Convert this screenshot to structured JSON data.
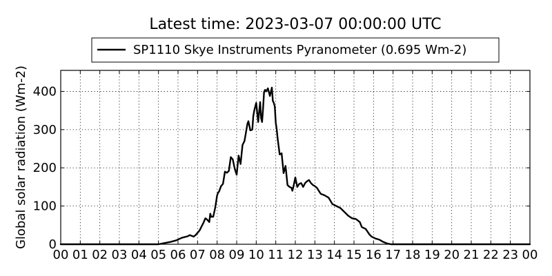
{
  "chart_data": {
    "type": "line",
    "title": "Latest time: 2023-03-07 00:00:00 UTC",
    "xlabel": "",
    "ylabel": "Global solar radiation (Wm-2)",
    "xlim": [
      0,
      24
    ],
    "ylim": [
      0,
      455
    ],
    "x_tick_labels": [
      "00",
      "01",
      "02",
      "03",
      "04",
      "05",
      "06",
      "07",
      "08",
      "09",
      "10",
      "11",
      "12",
      "13",
      "14",
      "15",
      "16",
      "17",
      "18",
      "19",
      "20",
      "21",
      "22",
      "23",
      "00"
    ],
    "y_ticks": [
      0,
      100,
      200,
      300,
      400
    ],
    "y_tick_labels": [
      "0",
      "100",
      "200",
      "300",
      "400"
    ],
    "grid": true,
    "legend_position": "top-center",
    "series": [
      {
        "name": "SP1110 Skye Instruments Pyranometer (0.695 Wm-2)",
        "color": "#000000",
        "x": [
          0,
          5.0,
          5.3,
          5.6,
          5.9,
          6.2,
          6.5,
          6.6,
          6.8,
          6.9,
          7.1,
          7.3,
          7.4,
          7.5,
          7.6,
          7.65,
          7.7,
          7.8,
          7.9,
          8.0,
          8.05,
          8.1,
          8.2,
          8.3,
          8.4,
          8.5,
          8.6,
          8.7,
          8.8,
          8.9,
          9.0,
          9.1,
          9.2,
          9.3,
          9.4,
          9.5,
          9.55,
          9.6,
          9.7,
          9.8,
          9.85,
          9.9,
          10.0,
          10.1,
          10.2,
          10.25,
          10.3,
          10.35,
          10.4,
          10.45,
          10.5,
          10.6,
          10.7,
          10.8,
          10.85,
          10.9,
          10.95,
          11.0,
          11.05,
          11.1,
          11.2,
          11.3,
          11.4,
          11.5,
          11.6,
          11.7,
          11.8,
          11.85,
          11.9,
          12.0,
          12.1,
          12.2,
          12.3,
          12.4,
          12.5,
          12.6,
          12.7,
          12.8,
          12.9,
          13.0,
          13.1,
          13.2,
          13.3,
          13.5,
          13.7,
          13.9,
          14.1,
          14.3,
          14.5,
          14.7,
          14.9,
          15.1,
          15.3,
          15.4,
          15.6,
          15.8,
          15.9,
          16.1,
          16.3,
          16.5,
          16.7,
          16.9,
          17.2,
          24
        ],
        "y": [
          0,
          0,
          3,
          6,
          10,
          17,
          21,
          24,
          20,
          24,
          36,
          56,
          68,
          64,
          58,
          80,
          72,
          72,
          95,
          128,
          135,
          138,
          152,
          158,
          190,
          187,
          192,
          228,
          222,
          198,
          182,
          232,
          210,
          260,
          270,
          300,
          315,
          322,
          298,
          300,
          335,
          350,
          370,
          320,
          372,
          330,
          320,
          355,
          398,
          404,
          400,
          408,
          388,
          410,
          375,
          370,
          360,
          318,
          300,
          275,
          235,
          238,
          186,
          205,
          155,
          150,
          148,
          140,
          150,
          175,
          150,
          158,
          160,
          150,
          160,
          165,
          168,
          160,
          155,
          152,
          148,
          140,
          132,
          128,
          122,
          105,
          100,
          95,
          85,
          75,
          68,
          66,
          58,
          45,
          40,
          25,
          20,
          15,
          12,
          6,
          2,
          0,
          0,
          0
        ]
      }
    ]
  }
}
